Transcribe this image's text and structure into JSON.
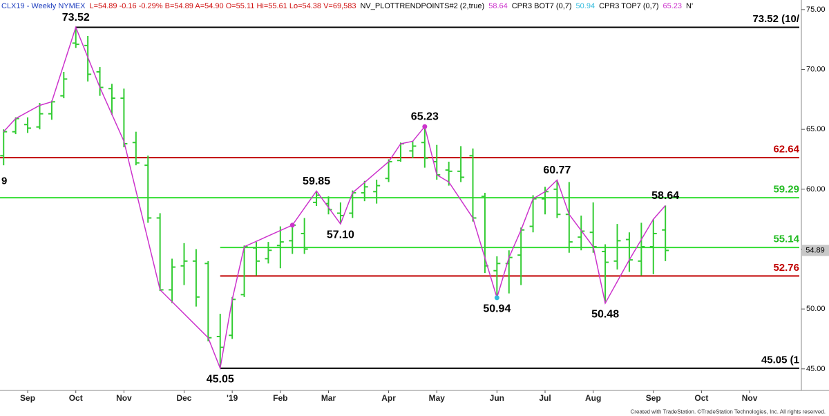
{
  "chart_data": {
    "type": "ohlc",
    "header": [
      {
        "text": "CLX19 - Weekly  NYMEX",
        "color": "#1f3fbf"
      },
      {
        "text": "L=54.89  -0.16  -0.29%  B=54.89  A=54.90  O=55.11  Hi=55.61  Lo=54.38  V=69,583",
        "color": "#d01010"
      },
      {
        "text": "NV_PLOTTRENDPOINTS#2 (2,true)",
        "color": "#000000"
      },
      {
        "text": "58.64",
        "color": "#cc33cc"
      },
      {
        "text": "CPR3 BOT7 (0,7)",
        "color": "#000000"
      },
      {
        "text": "50.94",
        "color": "#33bbdd"
      },
      {
        "text": "CPR3 TOP7 (0,7)",
        "color": "#000000"
      },
      {
        "text": "65.23",
        "color": "#cc33cc"
      },
      {
        "text": "N'",
        "color": "#000000"
      }
    ],
    "footer": "Created with TradeStation. ©TradeStation Technologies, Inc. All rights reserved.",
    "left_edge_text": "9",
    "xlim": [
      -0.3,
      66.3
    ],
    "xticks": [
      {
        "value": 2,
        "label": "Sep"
      },
      {
        "value": 6,
        "label": "Oct"
      },
      {
        "value": 10,
        "label": "Nov"
      },
      {
        "value": 15,
        "label": "Dec"
      },
      {
        "value": 19,
        "label": "'19"
      },
      {
        "value": 23,
        "label": "Feb"
      },
      {
        "value": 27,
        "label": "Mar"
      },
      {
        "value": 32,
        "label": "Apr"
      },
      {
        "value": 36,
        "label": "May"
      },
      {
        "value": 41,
        "label": "Jun"
      },
      {
        "value": 45,
        "label": "Jul"
      },
      {
        "value": 49,
        "label": "Aug"
      },
      {
        "value": 54,
        "label": "Sep"
      },
      {
        "value": 58,
        "label": "Oct"
      },
      {
        "value": 62,
        "label": "Nov"
      }
    ],
    "ylim": [
      43.2,
      75.8
    ],
    "yticks": [
      {
        "value": 45,
        "label": "45.00"
      },
      {
        "value": 50,
        "label": "50.00"
      },
      {
        "value": 55,
        "label": "55.00"
      },
      {
        "value": 60,
        "label": "60.00"
      },
      {
        "value": 65,
        "label": "65.00"
      },
      {
        "value": 70,
        "label": "70.00"
      },
      {
        "value": 75,
        "label": "75.00"
      }
    ],
    "ohlc": {
      "color": "#33cc33",
      "x": [
        0,
        1,
        2,
        3,
        4,
        5,
        6,
        7,
        8,
        9,
        10,
        11,
        12,
        13,
        14,
        15,
        16,
        17,
        18,
        19,
        20,
        21,
        22,
        23,
        24,
        25,
        26,
        27,
        28,
        29,
        30,
        31,
        32,
        33,
        34,
        35,
        36,
        37,
        38,
        39,
        40,
        41,
        42,
        43,
        44,
        45,
        46,
        47,
        48,
        49,
        50,
        51,
        52,
        53,
        54,
        55
      ],
      "open": [
        62.8,
        64.8,
        65.4,
        65.2,
        66.3,
        67.8,
        72.2,
        72.0,
        69.8,
        68.4,
        67.6,
        63.9,
        62.0,
        57.6,
        51.6,
        53.6,
        54.0,
        53.8,
        47.7,
        47.8,
        51.2,
        55.1,
        54.2,
        55.3,
        55.7,
        56.3,
        58.9,
        58.8,
        58.0,
        58.0,
        59.7,
        59.8,
        60.9,
        62.4,
        63.2,
        63.9,
        62.3,
        61.6,
        61.5,
        62.8,
        59.4,
        53.2,
        53.8,
        54.5,
        56.9,
        59.2,
        60.0,
        57.9,
        56.0,
        56.4,
        54.8,
        54.0,
        55.8,
        54.0,
        55.2,
        56.6
      ],
      "high": [
        65.0,
        66.0,
        66.0,
        67.2,
        67.4,
        69.8,
        73.52,
        72.8,
        70.2,
        68.8,
        68.4,
        64.8,
        62.8,
        58.0,
        54.2,
        55.5,
        55.0,
        54.0,
        49.6,
        51.0,
        55.3,
        55.6,
        55.6,
        56.9,
        57.2,
        57.6,
        59.85,
        59.4,
        58.9,
        59.9,
        60.7,
        60.8,
        62.5,
        63.9,
        64.0,
        65.23,
        63.7,
        62.3,
        63.6,
        63.4,
        59.7,
        54.4,
        54.9,
        56.8,
        59.5,
        60.2,
        60.77,
        60.6,
        57.8,
        58.9,
        55.4,
        57.1,
        56.4,
        57.2,
        57.5,
        58.64
      ],
      "low": [
        62.0,
        64.6,
        64.7,
        65.0,
        65.8,
        67.6,
        71.8,
        69.0,
        67.8,
        66.2,
        63.5,
        62.0,
        57.2,
        51.5,
        50.5,
        52.0,
        50.2,
        47.3,
        45.05,
        47.5,
        51.0,
        52.8,
        53.8,
        53.4,
        54.6,
        54.6,
        58.6,
        57.9,
        57.1,
        57.6,
        59.0,
        58.8,
        60.6,
        62.3,
        62.6,
        61.8,
        60.8,
        60.3,
        60.6,
        57.3,
        53.0,
        50.94,
        51.3,
        52.0,
        56.4,
        57.9,
        57.6,
        54.7,
        54.9,
        54.7,
        50.48,
        53.3,
        53.1,
        52.8,
        52.9,
        54.0
      ],
      "close": [
        64.8,
        65.9,
        65.1,
        66.3,
        67.3,
        69.2,
        72.1,
        69.6,
        68.5,
        67.6,
        63.8,
        62.2,
        57.6,
        51.6,
        53.5,
        54.0,
        51.0,
        47.6,
        46.8,
        50.8,
        55.2,
        54.0,
        54.9,
        55.6,
        57.0,
        55.0,
        59.5,
        58.3,
        57.8,
        59.7,
        60.2,
        60.3,
        62.3,
        63.8,
        63.6,
        62.6,
        61.2,
        61.5,
        61.0,
        57.6,
        53.6,
        53.8,
        54.3,
        56.6,
        59.2,
        59.8,
        57.9,
        55.6,
        56.5,
        55.2,
        53.9,
        55.7,
        54.1,
        55.2,
        56.3,
        54.89
      ]
    },
    "trend": {
      "color": "#cc33cc",
      "x": [
        0,
        1,
        3,
        4,
        6,
        8,
        10,
        13,
        17,
        18,
        19,
        20,
        24,
        26,
        28,
        29,
        32,
        33,
        34,
        35,
        36,
        37,
        39,
        41,
        42,
        43,
        44,
        45,
        46,
        47,
        49,
        50,
        52,
        54,
        55
      ],
      "values": [
        64.8,
        65.9,
        67.0,
        67.3,
        73.52,
        68.5,
        64.0,
        51.6,
        47.6,
        45.05,
        50.8,
        55.2,
        57.0,
        59.85,
        57.1,
        59.7,
        62.3,
        63.8,
        64.0,
        65.23,
        61.2,
        60.6,
        57.6,
        50.94,
        54.3,
        56.6,
        59.2,
        59.8,
        60.77,
        57.9,
        55.2,
        50.48,
        54.1,
        57.5,
        58.64
      ]
    },
    "markers": [
      {
        "x": 24,
        "value": 57.0,
        "color": "#cc33cc"
      },
      {
        "x": 35,
        "value": 65.23,
        "color": "#cc33cc"
      },
      {
        "x": 41,
        "value": 50.94,
        "color": "#33bbdd"
      }
    ],
    "annotations": [
      {
        "x": 6,
        "value": 73.52,
        "label": "73.52",
        "position": "above"
      },
      {
        "x": 18,
        "value": 45.05,
        "label": "45.05",
        "position": "below"
      },
      {
        "x": 26,
        "value": 59.85,
        "label": "59.85",
        "position": "above"
      },
      {
        "x": 28,
        "value": 57.1,
        "label": "57.10",
        "position": "below"
      },
      {
        "x": 35,
        "value": 65.23,
        "label": "65.23",
        "position": "above"
      },
      {
        "x": 41,
        "value": 50.94,
        "label": "50.94",
        "position": "below"
      },
      {
        "x": 46,
        "value": 60.77,
        "label": "60.77",
        "position": "above"
      },
      {
        "x": 50,
        "value": 50.48,
        "label": "50.48",
        "position": "below"
      },
      {
        "x": 55,
        "value": 58.64,
        "label": "58.64",
        "position": "above"
      }
    ],
    "levels": [
      {
        "value": 73.52,
        "label": "73.52 (10/",
        "color": "#000000",
        "label_color": "#000000",
        "from": 6
      },
      {
        "value": 62.64,
        "label": "62.64",
        "color": "#c00000",
        "label_color": "#c00000"
      },
      {
        "value": 59.29,
        "label": "59.29",
        "color": "#33dd33",
        "label_color": "#22bb22"
      },
      {
        "value": 55.14,
        "label": "55.14",
        "color": "#33dd33",
        "label_color": "#22bb22",
        "from": 18
      },
      {
        "value": 52.76,
        "label": "52.76",
        "color": "#c00000",
        "label_color": "#c00000",
        "from": 18
      },
      {
        "value": 45.05,
        "label": "45.05 (1",
        "color": "#000000",
        "label_color": "#000000",
        "from": 18
      }
    ],
    "last_price": {
      "value": 54.89,
      "label": "54.89"
    }
  }
}
